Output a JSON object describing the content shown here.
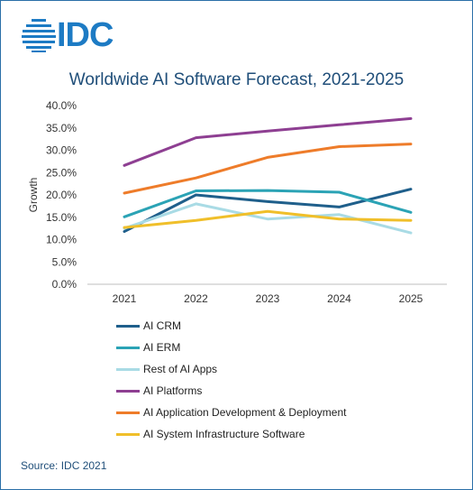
{
  "brand": {
    "logo_text": "IDC",
    "logo_color": "#1d7bc4"
  },
  "source": "Source: IDC 2021",
  "chart_data": {
    "type": "line",
    "title": "Worldwide AI Software Forecast, 2021-2025",
    "ylabel": "Growth",
    "xlabel": "",
    "x": [
      "2021",
      "2022",
      "2023",
      "2024",
      "2025"
    ],
    "ylim": [
      0,
      40
    ],
    "yticks": [
      "0.0%",
      "5.0%",
      "10.0%",
      "15.0%",
      "20.0%",
      "25.0%",
      "30.0%",
      "35.0%",
      "40.0%"
    ],
    "grid": false,
    "legend_position": "bottom",
    "series": [
      {
        "name": "AI CRM",
        "color": "#1f5f8b",
        "values": [
          11.8,
          20.0,
          18.5,
          17.3,
          21.3
        ]
      },
      {
        "name": "AI ERM",
        "color": "#2ba3b5",
        "values": [
          15.1,
          20.9,
          21.0,
          20.6,
          16.1
        ]
      },
      {
        "name": "Rest of AI Apps",
        "color": "#a9dbe5",
        "values": [
          12.5,
          18.0,
          14.6,
          15.6,
          11.5
        ]
      },
      {
        "name": "AI Platforms",
        "color": "#8e3f92",
        "values": [
          26.6,
          32.8,
          34.3,
          35.7,
          37.1
        ]
      },
      {
        "name": "AI Application Development & Deployment",
        "color": "#ee7c2a",
        "values": [
          20.4,
          23.8,
          28.4,
          30.8,
          31.4
        ]
      },
      {
        "name": "AI System Infrastructure Software",
        "color": "#f0bf2a",
        "values": [
          12.7,
          14.3,
          16.3,
          14.6,
          14.3
        ]
      }
    ]
  }
}
